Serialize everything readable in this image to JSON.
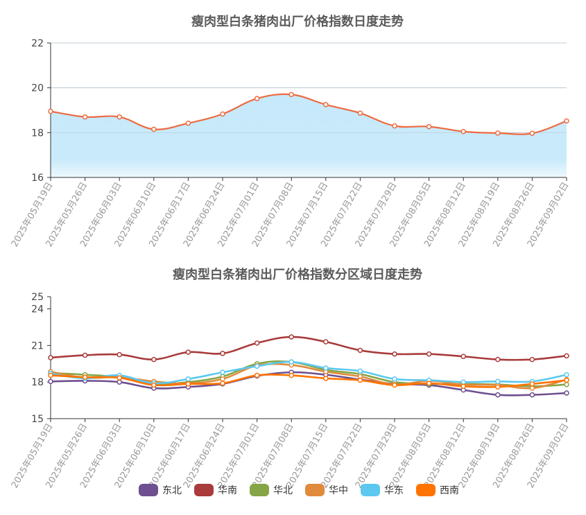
{
  "chart_data": [
    {
      "type": "area",
      "title": "瘦肉型白条猪肉出厂价格指数日度走势",
      "xlabel": "",
      "ylabel": "",
      "ylim": [
        16,
        22
      ],
      "yticks": [
        16,
        18,
        20,
        22
      ],
      "categories": [
        "2025年05月19日",
        "2025年05月26日",
        "2025年06月03日",
        "2025年06月10日",
        "2025年06月17日",
        "2025年06月24日",
        "2025年07月01日",
        "2025年07月08日",
        "2025年07月15日",
        "2025年07月22日",
        "2025年07月29日",
        "2025年08月05日",
        "2025年08月12日",
        "2025年08月19日",
        "2025年08月26日",
        "2025年09月02日"
      ],
      "series": [
        {
          "values": [
            18.95,
            18.7,
            18.7,
            18.15,
            18.42,
            18.83,
            19.52,
            19.7,
            19.25,
            18.87,
            18.3,
            18.27,
            18.05,
            17.98,
            17.97,
            18.52
          ]
        }
      ],
      "colors": {
        "line": "#ee6a40",
        "area_top": "#c6e9fb",
        "area_bottom": "#eef8fd"
      },
      "grid": true
    },
    {
      "type": "line",
      "title": "瘦肉型白条猪肉出厂价格指数分区域日度走势",
      "xlabel": "",
      "ylabel": "",
      "ylim": [
        15,
        25
      ],
      "yticks": [
        15,
        18,
        21,
        24,
        25
      ],
      "categories": [
        "2025年05月19日",
        "2025年05月26日",
        "2025年06月03日",
        "2025年06月10日",
        "2025年06月17日",
        "2025年06月24日",
        "2025年07月01日",
        "2025年07月08日",
        "2025年07月15日",
        "2025年07月22日",
        "2025年07月29日",
        "2025年08月05日",
        "2025年08月12日",
        "2025年08月19日",
        "2025年08月26日",
        "2025年09月02日"
      ],
      "legend_position": "bottom",
      "grid": false,
      "series": [
        {
          "name": "东北",
          "color": "#6e4f8f",
          "values": [
            18.05,
            18.1,
            18.0,
            17.5,
            17.6,
            17.85,
            18.5,
            18.8,
            18.6,
            18.2,
            17.85,
            17.75,
            17.35,
            16.95,
            16.95,
            17.1
          ]
        },
        {
          "name": "华南",
          "color": "#a93b3b",
          "values": [
            20.0,
            20.2,
            20.25,
            19.85,
            20.45,
            20.35,
            21.2,
            21.7,
            21.3,
            20.6,
            20.3,
            20.3,
            20.1,
            19.85,
            19.85,
            20.15
          ]
        },
        {
          "name": "华北",
          "color": "#85a546",
          "values": [
            18.75,
            18.6,
            18.4,
            17.85,
            18.0,
            18.45,
            19.5,
            19.65,
            19.0,
            18.65,
            18.0,
            17.85,
            17.85,
            17.8,
            17.65,
            17.8
          ]
        },
        {
          "name": "华中",
          "color": "#e08a3c",
          "values": [
            18.85,
            18.35,
            18.4,
            18.05,
            17.9,
            18.25,
            19.35,
            19.4,
            18.85,
            18.45,
            17.8,
            18.1,
            17.8,
            17.75,
            17.5,
            18.2
          ]
        },
        {
          "name": "华东",
          "color": "#5cc8ef",
          "values": [
            18.7,
            18.3,
            18.55,
            17.9,
            18.25,
            18.8,
            19.3,
            19.65,
            19.15,
            18.9,
            18.25,
            18.15,
            18.0,
            18.05,
            18.05,
            18.6
          ]
        },
        {
          "name": "西南",
          "color": "#ff7300",
          "values": [
            18.55,
            18.4,
            18.35,
            17.75,
            17.85,
            17.9,
            18.55,
            18.55,
            18.3,
            18.15,
            17.75,
            17.9,
            17.65,
            17.6,
            17.85,
            18.15
          ]
        }
      ]
    }
  ]
}
